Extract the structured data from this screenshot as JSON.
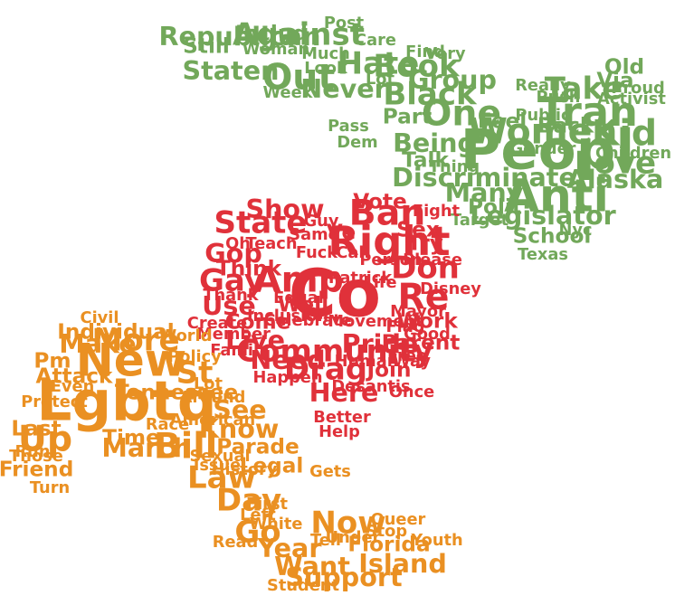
{
  "palette": {
    "green": "#72a85a",
    "red": "#e0313a",
    "orange": "#ea9022",
    "background": "#ffffff"
  },
  "groups": [
    {
      "name": "dove",
      "shape": "dove-hand",
      "color": "#72a85a",
      "words": [
        {
          "text": "Peopl",
          "weight": 10
        },
        {
          "text": "Anti",
          "weight": 8
        },
        {
          "text": "Tran",
          "weight": 7
        },
        {
          "text": "Women",
          "weight": 6
        },
        {
          "text": "Out",
          "weight": 6
        },
        {
          "text": "One",
          "weight": 6
        },
        {
          "text": "Kid",
          "weight": 6
        },
        {
          "text": "Take",
          "weight": 5
        },
        {
          "text": "Against",
          "weight": 5
        },
        {
          "text": "Hate",
          "weight": 5
        },
        {
          "text": "Book",
          "weight": 5
        },
        {
          "text": "Black",
          "weight": 5
        },
        {
          "text": "Love",
          "weight": 5
        },
        {
          "text": "Republican",
          "weight": 4
        },
        {
          "text": "Alaska",
          "weight": 4
        },
        {
          "text": "Legislator",
          "weight": 4
        },
        {
          "text": "Discriminate",
          "weight": 4
        },
        {
          "text": "Being",
          "weight": 4
        },
        {
          "text": "Many",
          "weight": 4
        },
        {
          "text": "Staten",
          "weight": 4
        },
        {
          "text": "Never",
          "weight": 4
        },
        {
          "text": "Group",
          "weight": 4
        },
        {
          "text": "Via",
          "weight": 3
        },
        {
          "text": "Old",
          "weight": 3
        },
        {
          "text": "Back",
          "weight": 3
        },
        {
          "text": "Part",
          "weight": 3
        },
        {
          "text": "Talk",
          "weight": 3
        },
        {
          "text": "Polit",
          "weight": 3
        },
        {
          "text": "School",
          "weight": 3
        },
        {
          "text": "Still",
          "weight": 3
        },
        {
          "text": "Includ",
          "weight": 3
        },
        {
          "text": "Woman",
          "weight": 2
        },
        {
          "text": "Care",
          "weight": 2
        },
        {
          "text": "Much",
          "weight": 2
        },
        {
          "text": "Lot",
          "weight": 2
        },
        {
          "text": "Week",
          "weight": 2
        },
        {
          "text": "Look",
          "weight": 2
        },
        {
          "text": "Feel",
          "weight": 3
        },
        {
          "text": "Pass",
          "weight": 2
        },
        {
          "text": "Dem",
          "weight": 2
        },
        {
          "text": "Thing",
          "weight": 2
        },
        {
          "text": "Nyc",
          "weight": 2
        },
        {
          "text": "Target",
          "weight": 2
        },
        {
          "text": "Texas",
          "weight": 2
        },
        {
          "text": "Public",
          "weight": 2
        },
        {
          "text": "Activist",
          "weight": 2
        },
        {
          "text": "Proud",
          "weight": 2
        },
        {
          "text": "Gender",
          "weight": 2
        },
        {
          "text": "Very",
          "weight": 2
        },
        {
          "text": "Children",
          "weight": 2
        },
        {
          "text": "Post",
          "weight": 2
        },
        {
          "text": "Really",
          "weight": 2
        },
        {
          "text": "Find",
          "weight": 2
        },
        {
          "text": "Push",
          "weight": 2
        }
      ]
    },
    {
      "name": "heart",
      "shape": "heart",
      "color": "#e0313a",
      "words": [
        {
          "text": "Co",
          "weight": 12
        },
        {
          "text": "Right",
          "weight": 7
        },
        {
          "text": "Ban",
          "weight": 6
        },
        {
          "text": "State",
          "weight": 5
        },
        {
          "text": "Don",
          "weight": 5
        },
        {
          "text": "Re",
          "weight": 6
        },
        {
          "text": "Gay",
          "weight": 5
        },
        {
          "text": "Community",
          "weight": 5
        },
        {
          "text": "Amp",
          "weight": 6
        },
        {
          "text": "Drag",
          "weight": 5
        },
        {
          "text": "Use",
          "weight": 4
        },
        {
          "text": "Gop",
          "weight": 4
        },
        {
          "text": "Show",
          "weight": 4
        },
        {
          "text": "Here",
          "weight": 4
        },
        {
          "text": "Need",
          "weight": 4
        },
        {
          "text": "Live",
          "weight": 4
        },
        {
          "text": "Come",
          "weight": 3
        },
        {
          "text": "Think",
          "weight": 3
        },
        {
          "text": "Pride",
          "weight": 4
        },
        {
          "text": "Work",
          "weight": 3
        },
        {
          "text": "Join",
          "weight": 3
        },
        {
          "text": "Parent",
          "weight": 3
        },
        {
          "text": "Sex",
          "weight": 3
        },
        {
          "text": "Try",
          "weight": 3
        },
        {
          "text": "Vote",
          "weight": 3
        },
        {
          "text": "Well",
          "weight": 3
        },
        {
          "text": "Good",
          "weight": 2
        },
        {
          "text": "Human",
          "weight": 2
        },
        {
          "text": "Person",
          "weight": 2
        },
        {
          "text": "Movement",
          "weight": 2
        },
        {
          "text": "Fight",
          "weight": 2
        },
        {
          "text": "Desantis",
          "weight": 2
        },
        {
          "text": "Better",
          "weight": 2
        },
        {
          "text": "Once",
          "weight": 2
        },
        {
          "text": "Way",
          "weight": 2
        },
        {
          "text": "Help",
          "weight": 2
        },
        {
          "text": "Disney",
          "weight": 2
        },
        {
          "text": "Please",
          "weight": 2
        },
        {
          "text": "Celebrate",
          "weight": 2
        },
        {
          "text": "Equal",
          "weight": 2
        },
        {
          "text": "Same",
          "weight": 2
        },
        {
          "text": "Thank",
          "weight": 2
        },
        {
          "text": "Member",
          "weight": 2
        },
        {
          "text": "Family",
          "weight": 2
        },
        {
          "text": "Happen",
          "weight": 2
        },
        {
          "text": "Mayor",
          "weight": 2
        },
        {
          "text": "Flag",
          "weight": 2
        },
        {
          "text": "Free",
          "weight": 2
        },
        {
          "text": "Life",
          "weight": 2
        },
        {
          "text": "Call",
          "weight": 2
        },
        {
          "text": "Teach",
          "weight": 2
        },
        {
          "text": "Fuck",
          "weight": 2
        },
        {
          "text": "Guy",
          "weight": 2
        },
        {
          "text": "Oh",
          "weight": 2
        },
        {
          "text": "Ve",
          "weight": 3
        },
        {
          "text": "Create",
          "weight": 2
        },
        {
          "text": "Inclusion",
          "weight": 2
        },
        {
          "text": "Patrick",
          "weight": 2
        }
      ]
    },
    {
      "name": "hand",
      "shape": "open-hand",
      "color": "#ea9022",
      "words": [
        {
          "text": "Lgbtq",
          "weight": 10
        },
        {
          "text": "New",
          "weight": 8
        },
        {
          "text": "Bill",
          "weight": 6
        },
        {
          "text": "More",
          "weight": 5
        },
        {
          "text": "Up",
          "weight": 6
        },
        {
          "text": "St",
          "weight": 5
        },
        {
          "text": "Go",
          "weight": 5
        },
        {
          "text": "Law",
          "weight": 5
        },
        {
          "text": "Now",
          "weight": 5
        },
        {
          "text": "Day",
          "weight": 5
        },
        {
          "text": "See",
          "weight": 4
        },
        {
          "text": "Know",
          "weight": 4
        },
        {
          "text": "March",
          "weight": 4
        },
        {
          "text": "Make",
          "weight": 4
        },
        {
          "text": "Year",
          "weight": 4
        },
        {
          "text": "Want",
          "weight": 4
        },
        {
          "text": "Support",
          "weight": 4
        },
        {
          "text": "Island",
          "weight": 4
        },
        {
          "text": "Attack",
          "weight": 3
        },
        {
          "text": "Parade",
          "weight": 3
        },
        {
          "text": "Time",
          "weight": 3
        },
        {
          "text": "Tennessee",
          "weight": 3
        },
        {
          "text": "Individual",
          "weight": 3
        },
        {
          "text": "Florida",
          "weight": 3
        },
        {
          "text": "Friend",
          "weight": 3
        },
        {
          "text": "Legal",
          "weight": 3
        },
        {
          "text": "Last",
          "weight": 3
        },
        {
          "text": "Turn",
          "weight": 2
        },
        {
          "text": "Run",
          "weight": 2
        },
        {
          "text": "Pm",
          "weight": 3
        },
        {
          "text": "Policy",
          "weight": 2
        },
        {
          "text": "Civil",
          "weight": 2
        },
        {
          "text": "Protect",
          "weight": 2
        },
        {
          "text": "Those",
          "weight": 2
        },
        {
          "text": "Sexual",
          "weight": 2
        },
        {
          "text": "Issue",
          "weight": 2
        },
        {
          "text": "History",
          "weight": 2
        },
        {
          "text": "Queer",
          "weight": 2
        },
        {
          "text": "Tell",
          "weight": 2
        },
        {
          "text": "Youth",
          "weight": 2
        },
        {
          "text": "Stop",
          "weight": 2
        },
        {
          "text": "Read",
          "weight": 2
        },
        {
          "text": "Race",
          "weight": 2
        },
        {
          "text": "Gets",
          "weight": 2
        },
        {
          "text": "Student",
          "weight": 2
        },
        {
          "text": "Around",
          "weight": 2
        },
        {
          "text": "American",
          "weight": 2
        },
        {
          "text": "Even",
          "weight": 2
        },
        {
          "text": "World",
          "weight": 2
        },
        {
          "text": "Left",
          "weight": 2
        },
        {
          "text": "First",
          "weight": 2
        },
        {
          "text": "White",
          "weight": 2
        },
        {
          "text": "Under",
          "weight": 2
        },
        {
          "text": "Lot",
          "weight": 2
        }
      ]
    }
  ]
}
